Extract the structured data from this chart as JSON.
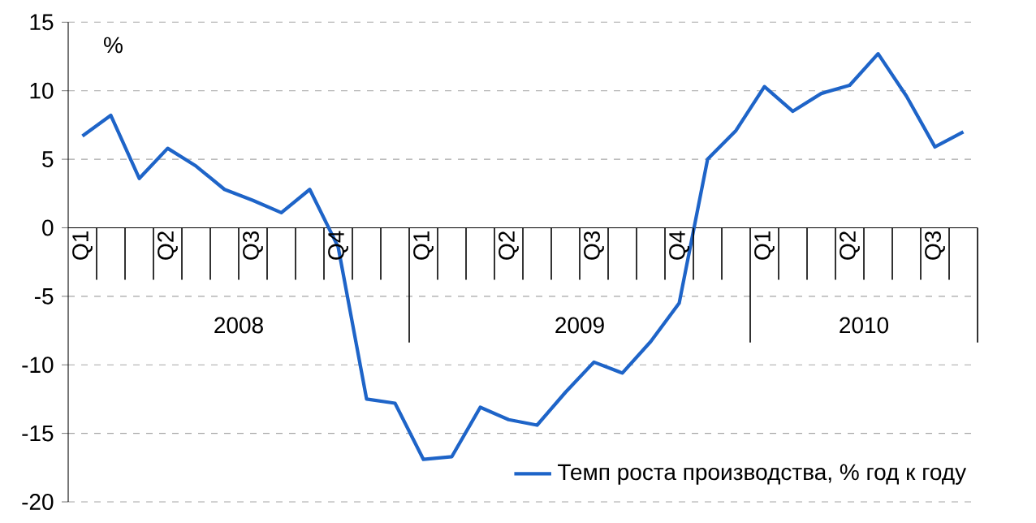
{
  "chart_data": {
    "type": "line",
    "ylabel": "%",
    "categories": [
      "Q1",
      null,
      null,
      "Q2",
      null,
      null,
      "Q3",
      null,
      null,
      "Q4",
      null,
      null,
      "Q1",
      null,
      null,
      "Q2",
      null,
      null,
      "Q3",
      null,
      null,
      "Q4",
      null,
      null,
      "Q1",
      null,
      null,
      "Q2",
      null,
      null,
      "Q3",
      null
    ],
    "series": [
      {
        "name": "Темп роста производства, % год к году",
        "color": "#1e64c8",
        "values": [
          6.7,
          8.2,
          3.6,
          5.8,
          4.5,
          2.8,
          2.0,
          1.1,
          2.8,
          -1.4,
          -12.5,
          -12.8,
          -16.9,
          -16.7,
          -13.1,
          -14.0,
          -14.4,
          -12.0,
          -9.8,
          -10.6,
          -8.3,
          -5.5,
          5.0,
          7.1,
          10.3,
          8.5,
          9.8,
          10.4,
          12.7,
          9.6,
          5.9,
          7.0
        ]
      }
    ],
    "annotations": [
      "2008",
      "2009",
      "2010"
    ],
    "ylim": [
      -20,
      15
    ],
    "yticks": [
      -20,
      -15,
      -10,
      -5,
      0,
      5,
      10,
      15
    ],
    "grid": "y",
    "legend": "bottom right",
    "marker": "none",
    "line_style": "solid"
  }
}
